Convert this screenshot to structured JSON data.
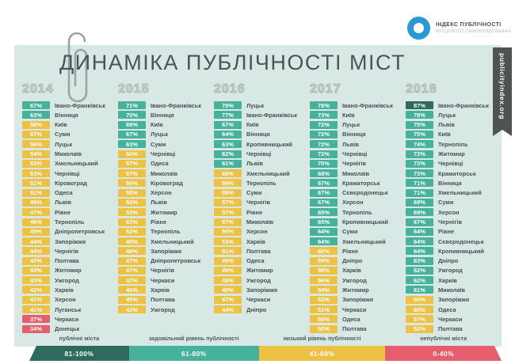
{
  "logo": {
    "line1": "ІНДЕКС ПУБЛІЧНОСТІ",
    "line2": "МІСЦЕВОГО САМОВРЯДУВАННЯ"
  },
  "side_tab": {
    "label": "publicityindex.org"
  },
  "colors": {
    "public": "#2f6a5c",
    "satisfactory": "#47b29b",
    "low": "#ecc144",
    "nonpublic": "#e65e6e",
    "card_bg": "#d8e9e5",
    "accent_blue": "#2a9ad2"
  },
  "chart_data": {
    "type": "table",
    "title": "ДИНАМІКА ПУБЛІЧНОСТІ МІСТ",
    "value_unit": "%",
    "tier_thresholds": {
      "public_min": 81,
      "satisfactory_min": 61,
      "low_min": 41
    },
    "series": [
      {
        "year": "2014",
        "entries": [
          [
            "Івано-Франківськ",
            67
          ],
          [
            "Вінниця",
            63
          ],
          [
            "Київ",
            58
          ],
          [
            "Суми",
            57
          ],
          [
            "Луцьк",
            56
          ],
          [
            "Миколаїв",
            54
          ],
          [
            "Хмельницький",
            53
          ],
          [
            "Чернівці",
            53
          ],
          [
            "Кіровоград",
            51
          ],
          [
            "Одеса",
            51
          ],
          [
            "Львів",
            49
          ],
          [
            "Рівне",
            47
          ],
          [
            "Тернопіль",
            46
          ],
          [
            "Дніпропетровськ",
            45
          ],
          [
            "Запоріжжя",
            44
          ],
          [
            "Чернігів",
            44
          ],
          [
            "Полтава",
            43
          ],
          [
            "Житомир",
            43
          ],
          [
            "Ужгород",
            43
          ],
          [
            "Харків",
            42
          ],
          [
            "Херсон",
            41
          ],
          [
            "Луганськ",
            41
          ],
          [
            "Черкаси",
            37
          ],
          [
            "Донецьк",
            34
          ]
        ]
      },
      {
        "year": "2015",
        "entries": [
          [
            "Івано-Франківськ",
            71
          ],
          [
            "Вінниця",
            70
          ],
          [
            "Київ",
            69
          ],
          [
            "Луцьк",
            67
          ],
          [
            "Суми",
            63
          ],
          [
            "Чернівці",
            60
          ],
          [
            "Одеса",
            57
          ],
          [
            "Миколаїв",
            57
          ],
          [
            "Кіровоград",
            56
          ],
          [
            "Херсон",
            55
          ],
          [
            "Львів",
            53
          ],
          [
            "Житомир",
            53
          ],
          [
            "Рівне",
            52
          ],
          [
            "Тернопіль",
            52
          ],
          [
            "Хмельницький",
            48
          ],
          [
            "Запоріжжя",
            48
          ],
          [
            "Дніпропетровськ",
            47
          ],
          [
            "Чернігів",
            47
          ],
          [
            "Черкаси",
            47
          ],
          [
            "Харків",
            46
          ],
          [
            "Полтава",
            45
          ],
          [
            "Ужгород",
            42
          ]
        ]
      },
      {
        "year": "2016",
        "entries": [
          [
            "Луцьк",
            79
          ],
          [
            "Івано-Франківськ",
            77
          ],
          [
            "Київ",
            67
          ],
          [
            "Вінниця",
            64
          ],
          [
            "Кропивницький",
            63
          ],
          [
            "Чернівці",
            62
          ],
          [
            "Львів",
            61
          ],
          [
            "Хмельницький",
            60
          ],
          [
            "Тернопіль",
            59
          ],
          [
            "Суми",
            59
          ],
          [
            "Чернігів",
            57
          ],
          [
            "Рівне",
            57
          ],
          [
            "Миколаїв",
            57
          ],
          [
            "Херсон",
            56
          ],
          [
            "Харків",
            53
          ],
          [
            "Полтава",
            51
          ],
          [
            "Одеса",
            49
          ],
          [
            "Житомир",
            49
          ],
          [
            "Ужгород",
            49
          ],
          [
            "Запоріжжя",
            48
          ],
          [
            "Черкаси",
            47
          ],
          [
            "Дніпро",
            44
          ]
        ]
      },
      {
        "year": "2017",
        "entries": [
          [
            "Івано-Франківськ",
            78
          ],
          [
            "Київ",
            73
          ],
          [
            "Луцьк",
            72
          ],
          [
            "Вінниця",
            72
          ],
          [
            "Львів",
            72
          ],
          [
            "Чернівці",
            72
          ],
          [
            "Чернігів",
            70
          ],
          [
            "Миколаїв",
            68
          ],
          [
            "Краматорськ",
            67
          ],
          [
            "Сєвєродонецьк",
            67
          ],
          [
            "Херсон",
            67
          ],
          [
            "Тернопіль",
            65
          ],
          [
            "Кропивницький",
            65
          ],
          [
            "Суми",
            64
          ],
          [
            "Хмельницький",
            64
          ],
          [
            "Рівне",
            60
          ],
          [
            "Дніпро",
            59
          ],
          [
            "Харків",
            56
          ],
          [
            "Ужгород",
            56
          ],
          [
            "Житомир",
            54
          ],
          [
            "Запоріжжя",
            53
          ],
          [
            "Черкаси",
            51
          ],
          [
            "Одеса",
            50
          ],
          [
            "Полтава",
            50
          ]
        ]
      },
      {
        "year": "2018",
        "entries": [
          [
            "Івано-Франківськ",
            87
          ],
          [
            "Луцьк",
            78
          ],
          [
            "Львів",
            75
          ],
          [
            "Київ",
            75
          ],
          [
            "Тернопіль",
            74
          ],
          [
            "Житомир",
            73
          ],
          [
            "Чернівці",
            73
          ],
          [
            "Краматорськ",
            73
          ],
          [
            "Вінниця",
            71
          ],
          [
            "Хмельницький",
            71
          ],
          [
            "Суми",
            69
          ],
          [
            "Херсон",
            69
          ],
          [
            "Чернігів",
            67
          ],
          [
            "Рівне",
            64
          ],
          [
            "Сєвєродонецьк",
            64
          ],
          [
            "Кропивницький",
            64
          ],
          [
            "Дніпро",
            63
          ],
          [
            "Ужгород",
            62
          ],
          [
            "Харків",
            62
          ],
          [
            "Миколаїв",
            61
          ],
          [
            "Запоріжжя",
            60
          ],
          [
            "Одеса",
            60
          ],
          [
            "Черкаси",
            57
          ],
          [
            "Полтава",
            52
          ]
        ]
      }
    ]
  },
  "legend": [
    {
      "label": "публічні міста",
      "range": "81-100%",
      "color": "#2f6a5c",
      "width_pct": 21.1
    },
    {
      "label": "задовільний рівень публічності",
      "range": "61-80%",
      "color": "#47b29b",
      "width_pct": 27.5
    },
    {
      "label": "низький рівень публічності",
      "range": "41-60%",
      "color": "#ecc144",
      "width_pct": 26.8
    },
    {
      "label": "непублічні міста",
      "range": "0-40%",
      "color": "#e65e6e",
      "width_pct": 24.6
    }
  ]
}
